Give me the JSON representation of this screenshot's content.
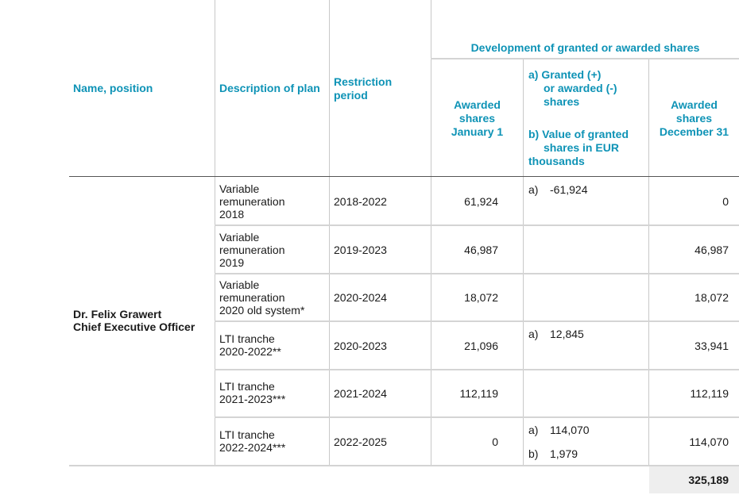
{
  "header": {
    "group_title": "Development of granted or awarded shares",
    "col_name": "Name, position",
    "col_plan": "Description of plan",
    "col_restriction_1": "Restriction",
    "col_restriction_2": "period",
    "col_jan_1": "Awarded",
    "col_jan_2": "shares",
    "col_jan_3": "January 1",
    "col_granted_a1": "a) Granted (+)",
    "col_granted_a2": "or awarded (-)",
    "col_granted_a3": "shares",
    "col_granted_b1": "b) Value of granted",
    "col_granted_b2": "shares in EUR",
    "col_granted_b3": "thousands",
    "col_dec_1": "Awarded",
    "col_dec_2": "shares",
    "col_dec_3": "December 31"
  },
  "person": {
    "name": "Dr. Felix Grawert",
    "position": "Chief Executive Officer"
  },
  "rows": [
    {
      "plan_lines": [
        "Variable",
        "remuneration",
        "2018"
      ],
      "period": "2018-2022",
      "jan": "61,924",
      "a_label": "a)",
      "a_value": "-61,924",
      "b_label": "",
      "b_value": "",
      "dec": "0"
    },
    {
      "plan_lines": [
        "Variable",
        "remuneration",
        "2019"
      ],
      "period": "2019-2023",
      "jan": "46,987",
      "a_label": "",
      "a_value": "",
      "b_label": "",
      "b_value": "",
      "dec": "46,987"
    },
    {
      "plan_lines": [
        "Variable",
        "remuneration",
        "2020 old system*"
      ],
      "period": "2020-2024",
      "jan": "18,072",
      "a_label": "",
      "a_value": "",
      "b_label": "",
      "b_value": "",
      "dec": "18,072"
    },
    {
      "plan_lines": [
        "LTI tranche",
        "2020-2022**"
      ],
      "period": "2020-2023",
      "jan": "21,096",
      "a_label": "a)",
      "a_value": "12,845",
      "b_label": "",
      "b_value": "",
      "dec": "33,941"
    },
    {
      "plan_lines": [
        "LTI tranche",
        "2021-2023***"
      ],
      "period": "2021-2024",
      "jan": "112,119",
      "a_label": "",
      "a_value": "",
      "b_label": "",
      "b_value": "",
      "dec": "112,119"
    },
    {
      "plan_lines": [
        "LTI tranche",
        "2022-2024***"
      ],
      "period": "2022-2025",
      "jan": "0",
      "a_label": "a)",
      "a_value": "114,070",
      "b_label": "b)",
      "b_value": "1,979",
      "dec": "114,070"
    }
  ],
  "total": "325,189",
  "colors": {
    "header_text": "#0e93b6",
    "body_text": "#1a1a1a",
    "grid": "#c8c8c8",
    "total_bg": "#eeeeee"
  }
}
